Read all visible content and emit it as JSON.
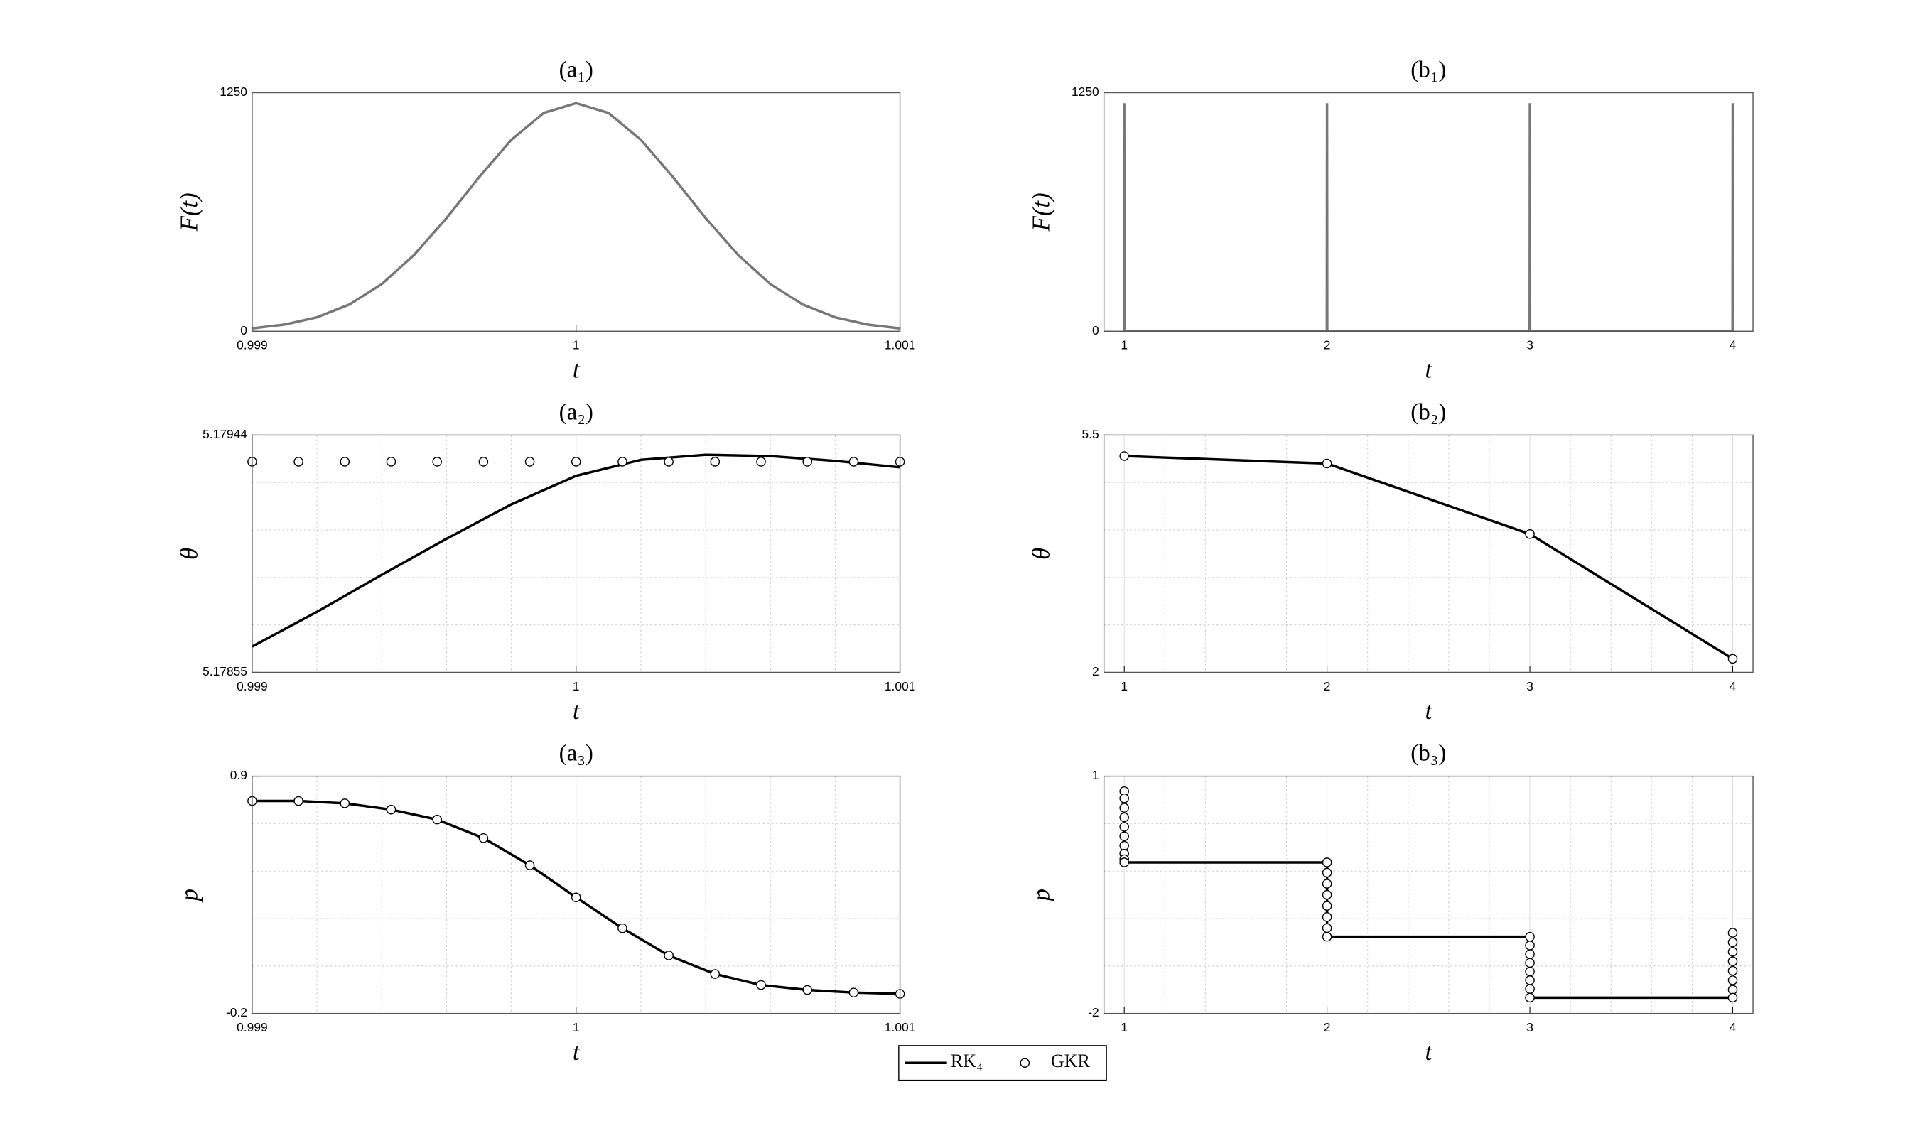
{
  "chart_data": [
    {
      "type": "line",
      "title": "(a₁)",
      "xlabel": "t",
      "ylabel": "F(t)",
      "xlim": [
        0.999,
        1.001
      ],
      "xticks": [
        0.999,
        1,
        1.001
      ],
      "ylim": [
        0,
        1250
      ],
      "yticks": [
        0,
        1250
      ],
      "grid": false,
      "series": [
        {
          "color": "#777777",
          "style": "line",
          "x": [
            0.999,
            0.9991,
            0.9992,
            0.9993,
            0.9994,
            0.9995,
            0.9996,
            0.9997,
            0.9998,
            0.9999,
            1,
            1.0001,
            1.0002,
            1.0003,
            1.0004,
            1.0005,
            1.0006,
            1.0007,
            1.0008,
            1.0009,
            1.001
          ],
          "values": [
            15,
            35,
            73,
            140,
            247,
            400,
            593,
            806,
            1003,
            1144,
            1195,
            1144,
            1003,
            806,
            593,
            400,
            247,
            140,
            73,
            35,
            15
          ]
        }
      ]
    },
    {
      "type": "line",
      "title": "(b₁)",
      "xlabel": "t",
      "ylabel": "F(t)",
      "xlim": [
        0.9,
        4.1
      ],
      "xticks": [
        1,
        2,
        3,
        4
      ],
      "ylim": [
        0,
        1250
      ],
      "yticks": [
        0,
        1250
      ],
      "grid": false,
      "series": [
        {
          "color": "#777777",
          "style": "line",
          "x": [
            1,
            1.001,
            1.999,
            2,
            2.001,
            2.999,
            3,
            3.001,
            3.999,
            4
          ],
          "values": [
            1195,
            0,
            0,
            1195,
            0,
            0,
            1195,
            0,
            0,
            1195
          ]
        }
      ]
    },
    {
      "type": "line",
      "title": "(a₂)",
      "xlabel": "t",
      "ylabel": "θ",
      "xlim": [
        0.999,
        1.001
      ],
      "xticks": [
        0.999,
        1,
        1.001
      ],
      "ylim": [
        5.17855,
        5.17944
      ],
      "yticks": [
        5.17855,
        5.17944
      ],
      "grid": true,
      "series": [
        {
          "name": "RK₄",
          "color": "#000000",
          "style": "line",
          "x": [
            0.999,
            0.9992,
            0.9994,
            0.9996,
            0.9998,
            1,
            1.0002,
            1.0004,
            1.0006,
            1.0008,
            1.001
          ],
          "values": [
            5.178647,
            5.178777,
            5.178916,
            5.179051,
            5.17918,
            5.179287,
            5.179347,
            5.179366,
            5.179361,
            5.179343,
            5.179319
          ]
        },
        {
          "name": "GKR",
          "color": "#000000",
          "style": "markers",
          "x": [
            0.999,
            0.999143,
            0.999286,
            0.999429,
            0.999571,
            0.999714,
            0.999857,
            1,
            1.000143,
            1.000286,
            1.000429,
            1.000571,
            1.000714,
            1.000857,
            1.001
          ],
          "values": [
            5.17934,
            5.17934,
            5.17934,
            5.17934,
            5.17934,
            5.17934,
            5.17934,
            5.17934,
            5.17934,
            5.17934,
            5.17934,
            5.17934,
            5.17934,
            5.17934,
            5.17934
          ]
        }
      ]
    },
    {
      "type": "line",
      "title": "(b₂)",
      "xlabel": "t",
      "ylabel": "θ",
      "xlim": [
        0.9,
        4.1
      ],
      "xticks": [
        1,
        2,
        3,
        4
      ],
      "ylim": [
        2,
        5.5
      ],
      "yticks": [
        2,
        5.5
      ],
      "grid": true,
      "series": [
        {
          "color": "#000000",
          "style": "line",
          "x": [
            1,
            2,
            3,
            4
          ],
          "values": [
            5.19,
            5.08,
            4.04,
            2.2
          ]
        },
        {
          "color": "#000000",
          "style": "markers",
          "x": [
            1,
            2,
            3,
            4
          ],
          "values": [
            5.19,
            5.08,
            4.04,
            2.2
          ]
        }
      ]
    },
    {
      "type": "line",
      "title": "(a₃)",
      "xlabel": "t",
      "ylabel": "p",
      "xlim": [
        0.999,
        1.001
      ],
      "xticks": [
        0.999,
        1,
        1.001
      ],
      "ylim": [
        -0.2,
        0.9
      ],
      "yticks": [
        -0.2,
        0.9
      ],
      "grid": true,
      "series": [
        {
          "color": "#000000",
          "style": "line",
          "x": [
            0.999,
            0.999143,
            0.999286,
            0.999429,
            0.999571,
            0.999714,
            0.999857,
            1,
            1.000143,
            1.000286,
            1.000429,
            1.000571,
            1.000714,
            1.000857,
            1.001
          ],
          "values": [
            0.785,
            0.785,
            0.774,
            0.745,
            0.699,
            0.613,
            0.487,
            0.338,
            0.195,
            0.069,
            -0.017,
            -0.068,
            -0.091,
            -0.103,
            -0.109
          ]
        },
        {
          "color": "#000000",
          "style": "markers",
          "x": [
            0.999,
            0.999143,
            0.999286,
            0.999429,
            0.999571,
            0.999714,
            0.999857,
            1,
            1.000143,
            1.000286,
            1.000429,
            1.000571,
            1.000714,
            1.000857,
            1.001
          ],
          "values": [
            0.785,
            0.785,
            0.774,
            0.745,
            0.699,
            0.613,
            0.487,
            0.338,
            0.195,
            0.069,
            -0.017,
            -0.068,
            -0.091,
            -0.103,
            -0.109
          ]
        }
      ]
    },
    {
      "type": "line",
      "title": "(b₃)",
      "xlabel": "t",
      "ylabel": "p",
      "xlim": [
        0.9,
        4.1
      ],
      "xticks": [
        1,
        2,
        3,
        4
      ],
      "ylim": [
        -2,
        1
      ],
      "yticks": [
        -2,
        1
      ],
      "grid": true,
      "series": [
        {
          "color": "#000000",
          "style": "line",
          "x": [
            1,
            2,
            2,
            3,
            3,
            4
          ],
          "values": [
            -0.09,
            -0.09,
            -1.03,
            -1.03,
            -1.8,
            -1.8
          ]
        },
        {
          "color": "#000000",
          "style": "markers",
          "x": [
            1,
            1,
            1,
            1,
            1,
            1,
            1,
            1,
            1,
            1,
            2,
            2,
            2,
            2,
            2,
            2,
            2,
            2,
            3,
            3,
            3,
            3,
            3,
            3,
            3,
            3,
            4,
            4,
            4,
            4,
            4,
            4,
            4,
            4
          ],
          "values": [
            0.81,
            0.72,
            0.6,
            0.48,
            0.36,
            0.24,
            0.12,
            0.02,
            -0.05,
            -0.09,
            -0.09,
            -0.22,
            -0.36,
            -0.5,
            -0.64,
            -0.78,
            -0.92,
            -1.03,
            -1.03,
            -1.14,
            -1.25,
            -1.36,
            -1.47,
            -1.58,
            -1.69,
            -1.8,
            -0.98,
            -1.1,
            -1.22,
            -1.34,
            -1.46,
            -1.58,
            -1.7,
            -1.8
          ]
        }
      ]
    }
  ]
}
